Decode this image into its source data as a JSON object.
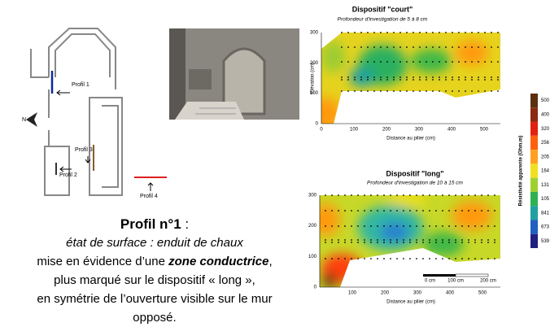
{
  "plan": {
    "north": "N",
    "profiles": [
      "Profil 1",
      "Profil 2",
      "Profil 3",
      "Profil 4"
    ]
  },
  "chart_short": {
    "title": "Dispositif \"court\"",
    "subtitle": "Profondeur d'investigation de 5 à 8 cm",
    "ylabel": "Elévation (cm)",
    "xlabel": "Distance au pilier (cm)",
    "yticks": [
      0,
      100,
      200,
      300
    ],
    "xticks": [
      0,
      100,
      200,
      300,
      400,
      500
    ]
  },
  "chart_long": {
    "title": "Dispositif \"long\"",
    "subtitle": "Profondeur d'investigation de 10 à 15 cm",
    "xlabel": "Distance au pilier (cm)",
    "yticks": [
      0,
      100,
      200,
      300
    ],
    "xticks": [
      100,
      200,
      300,
      400,
      500
    ],
    "scale": [
      "0 cm",
      "100 cm",
      "200 cm"
    ]
  },
  "colorbar": {
    "title": "Résistivité apparente (Ohm.m)",
    "labels": [
      "500",
      "400",
      "320",
      "256",
      "205",
      "164",
      "131",
      "105",
      "841",
      "673",
      "539"
    ]
  },
  "text": {
    "heading": "Profil n°1",
    "heading_suffix": " :",
    "lines": [
      "état de surface : enduit de chaux",
      "mise en évidence d’une ",
      "zone conductrice",
      ",",
      "plus marqué sur le dispositif « long »,",
      "en symétrie de l’ouverture visible sur le mur",
      "opposé."
    ]
  }
}
